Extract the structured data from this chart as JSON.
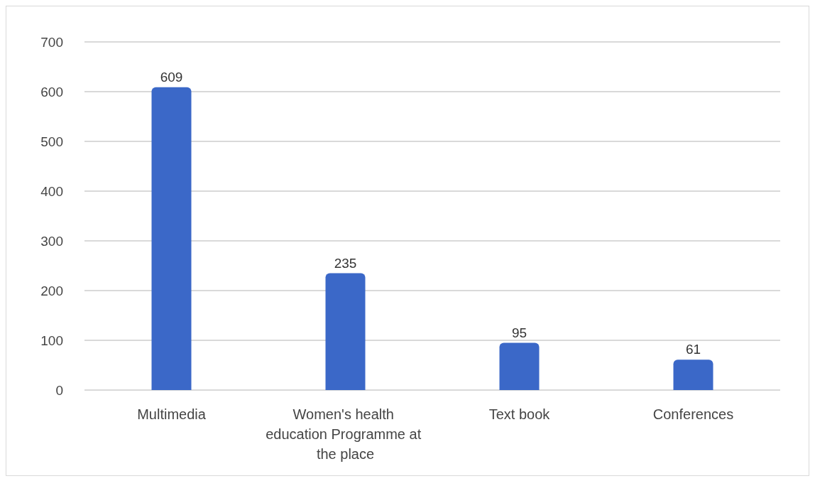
{
  "chart_data": {
    "type": "bar",
    "categories": [
      "Multimedia",
      "Women's health education Programme at the place",
      "Text book",
      "Conferences"
    ],
    "values": [
      609,
      235,
      95,
      61
    ],
    "color": "#3b68c8",
    "ylim": [
      0,
      700
    ],
    "yticks": [
      0,
      100,
      200,
      300,
      400,
      500,
      600,
      700
    ],
    "grid": "y",
    "data_labels": true
  }
}
